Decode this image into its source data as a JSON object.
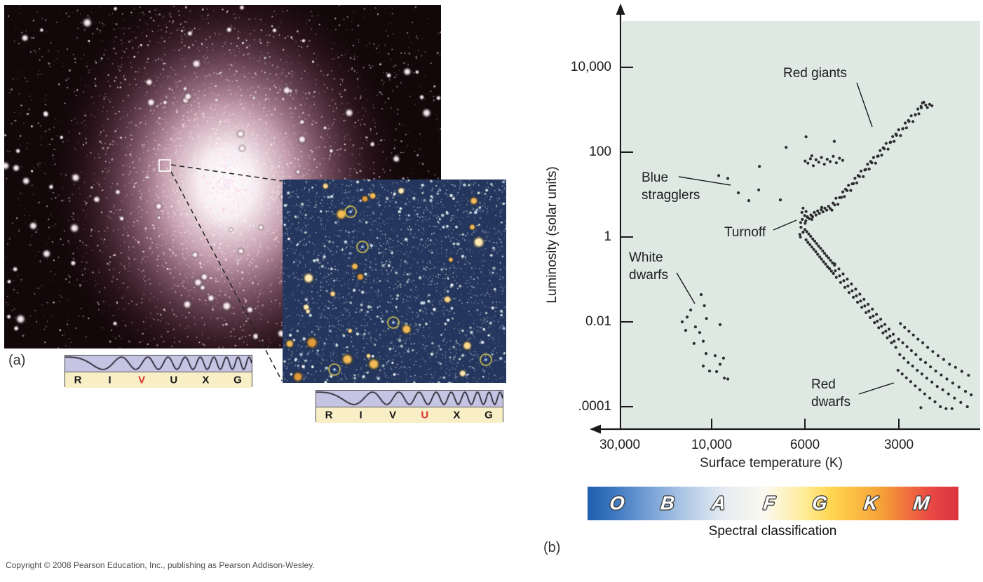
{
  "panels": {
    "a": "(a)",
    "b": "(b)"
  },
  "copyright": "Copyright © 2008 Pearson Education, Inc., publishing as Pearson Addison-Wesley.",
  "rivuxg": {
    "letters": [
      "R",
      "I",
      "V",
      "U",
      "X",
      "G"
    ],
    "bar1_highlight": "V",
    "bar2_highlight": "U",
    "highlight_color": "#d9342b",
    "letter_color": "#1a1a1a"
  },
  "spectral_bar": {
    "classes": [
      "O",
      "B",
      "A",
      "F",
      "G",
      "K",
      "M"
    ],
    "caption": "Spectral classification"
  },
  "chart_data": {
    "type": "scatter",
    "title": "",
    "xlabel": "Surface temperature (K)",
    "ylabel": "Luminosity (solar units)",
    "x_axis": {
      "direction": "decreasing to the right",
      "scale": "nonlinear (log-like)",
      "range": [
        30000,
        1700
      ]
    },
    "y_axis": {
      "scale": "log",
      "range": [
        0.0001,
        10000
      ]
    },
    "grid": false,
    "legend": false,
    "plot_bg": "#dee9e4",
    "dot_color": "#2d2d2d",
    "x_ticks": [
      {
        "label": "30,000",
        "value": 30000
      },
      {
        "label": "10,000",
        "value": 10000
      },
      {
        "label": "6000",
        "value": 6000
      },
      {
        "label": "3000",
        "value": 3000
      }
    ],
    "y_ticks": [
      {
        "label": "10,000",
        "value": 10000
      },
      {
        "label": "100",
        "value": 100
      },
      {
        "label": "1",
        "value": 1
      },
      {
        "label": "0.01",
        "value": 0.01
      },
      {
        "label": ".0001",
        "value": 0.0001
      }
    ],
    "annotations": {
      "red_giants": "Red giants",
      "blue_stragglers": "Blue stragglers",
      "turnoff": "Turnoff",
      "white_dwarfs": "White dwarfs",
      "red_dwarfs": "Red dwarfs"
    },
    "series": [
      {
        "name": "blue_stragglers",
        "points": [
          [
            9620,
            28
          ],
          [
            9155,
            24
          ],
          [
            8640,
            11
          ],
          [
            8160,
            7.2
          ],
          [
            7730,
            12.9
          ],
          [
            7700,
            46
          ],
          [
            6865,
            7.5
          ]
        ]
      },
      {
        "name": "turnoff_region",
        "points": [
          [
            6150,
            1.0
          ],
          [
            6060,
            1.3
          ],
          [
            6130,
            1.7
          ],
          [
            5990,
            2.1
          ],
          [
            6090,
            2.6
          ],
          [
            6010,
            3.2
          ],
          [
            6140,
            2.2
          ],
          [
            5950,
            4.0
          ],
          [
            6060,
            4.8
          ],
          [
            5900,
            3.0
          ],
          [
            6000,
            1.5
          ],
          [
            6100,
            3.8
          ],
          [
            5960,
            2.4
          ],
          [
            6170,
            1.15
          ]
        ]
      },
      {
        "name": "subgiant_branch",
        "points": [
          [
            5880,
            2.9
          ],
          [
            5810,
            2.7
          ],
          [
            5740,
            3.3
          ],
          [
            5670,
            3.0
          ],
          [
            5600,
            3.8
          ],
          [
            5530,
            3.3
          ],
          [
            5460,
            4.1
          ],
          [
            5390,
            3.6
          ],
          [
            5320,
            4.4
          ],
          [
            5250,
            3.9
          ],
          [
            5180,
            4.8
          ],
          [
            5110,
            4.3
          ],
          [
            5040,
            5.3
          ],
          [
            4980,
            4.7
          ],
          [
            5700,
            2.6
          ],
          [
            5300,
            5.0
          ]
        ]
      },
      {
        "name": "red_giant_branch",
        "points": [
          [
            4916,
            4.3
          ],
          [
            4876,
            6.3
          ],
          [
            4816,
            5.7
          ],
          [
            4771,
            8.2
          ],
          [
            4702,
            5.9
          ],
          [
            4649,
            8.5
          ],
          [
            4583,
            8.6
          ],
          [
            4536,
            11.6
          ],
          [
            4485,
            9.0
          ],
          [
            4445,
            13.4
          ],
          [
            4395,
            12.4
          ],
          [
            4350,
            16.6
          ],
          [
            4278,
            12.5
          ],
          [
            4231,
            17.9
          ],
          [
            4194,
            18.1
          ],
          [
            4147,
            24.3
          ],
          [
            4092,
            18.9
          ],
          [
            4052,
            28.1
          ],
          [
            4011,
            26.6
          ],
          [
            3966,
            35.8
          ],
          [
            3902,
            26.5
          ],
          [
            3855,
            38.1
          ],
          [
            3827,
            39
          ],
          [
            3780,
            52
          ],
          [
            3733,
            40
          ],
          [
            3693,
            60
          ],
          [
            3661,
            56
          ],
          [
            3616,
            75
          ],
          [
            3560,
            55
          ],
          [
            3513,
            80
          ],
          [
            3492,
            81
          ],
          [
            3445,
            109
          ],
          [
            3406,
            85
          ],
          [
            3366,
            127
          ],
          [
            3341,
            120
          ],
          [
            3296,
            161
          ],
          [
            3248,
            118
          ],
          [
            3201,
            169
          ],
          [
            3187,
            173
          ],
          [
            3140,
            233
          ],
          [
            3108,
            180
          ],
          [
            3068,
            267
          ],
          [
            3050,
            250
          ],
          [
            3005,
            337
          ],
          [
            2963,
            246
          ],
          [
            2916,
            354
          ],
          [
            2909,
            361
          ],
          [
            2862,
            486
          ],
          [
            2836,
            375
          ],
          [
            2796,
            558
          ],
          [
            2784,
            534
          ],
          [
            2739,
            719
          ],
          [
            2704,
            527
          ],
          [
            2657,
            757
          ],
          [
            2655,
            772
          ],
          [
            2608,
            1040
          ],
          [
            2588,
            801
          ],
          [
            2548,
            1192
          ],
          [
            2542,
            1116
          ],
          [
            2495,
            1504
          ]
        ]
      },
      {
        "name": "giant_branch_tip",
        "points": [
          [
            2460,
            1290
          ],
          [
            2430,
            1130
          ],
          [
            2390,
            1340
          ],
          [
            2520,
            1440
          ],
          [
            2350,
            1240
          ]
        ]
      },
      {
        "name": "horizontal_branch",
        "points": [
          [
            5990,
            62
          ],
          [
            5870,
            55
          ],
          [
            5760,
            70
          ],
          [
            5640,
            48
          ],
          [
            5530,
            66
          ],
          [
            5420,
            58
          ],
          [
            5310,
            75
          ],
          [
            5200,
            52
          ],
          [
            5090,
            68
          ],
          [
            4980,
            60
          ],
          [
            4870,
            80
          ],
          [
            4760,
            56
          ],
          [
            4650,
            72
          ],
          [
            4540,
            64
          ],
          [
            5700,
            82
          ]
        ]
      },
      {
        "name": "bright_giants_scatter",
        "points": [
          [
            6650,
            130
          ],
          [
            5950,
            230
          ],
          [
            4830,
            180
          ]
        ]
      },
      {
        "name": "main_sequence_upper",
        "points": [
          [
            5952,
            0.86
          ],
          [
            5918,
            1.34
          ],
          [
            5872,
            0.75
          ],
          [
            5833,
            1.18
          ],
          [
            5783,
            0.66
          ],
          [
            5748,
            1.04
          ],
          [
            5700,
            0.58
          ],
          [
            5662,
            0.9
          ],
          [
            5622,
            0.51
          ],
          [
            5581,
            0.8
          ],
          [
            5538,
            0.45
          ],
          [
            5500,
            0.7
          ],
          [
            5461,
            0.39
          ],
          [
            5421,
            0.61
          ],
          [
            5380,
            0.34
          ],
          [
            5341,
            0.54
          ],
          [
            5305,
            0.3
          ],
          [
            5262,
            0.47
          ],
          [
            5228,
            0.26
          ],
          [
            5188,
            0.41
          ],
          [
            5150,
            0.23
          ],
          [
            5111,
            0.36
          ],
          [
            5080,
            0.2
          ],
          [
            5039,
            0.32
          ],
          [
            5003,
            0.18
          ],
          [
            4965,
            0.28
          ],
          [
            4934,
            0.157
          ],
          [
            4893,
            0.245
          ],
          [
            4861,
            0.138
          ],
          [
            4820,
            0.216
          ]
        ]
      },
      {
        "name": "main_sequence_lower",
        "points": [
          [
            4758,
            0.112
          ],
          [
            4794,
            0.16
          ],
          [
            4816,
            0.232
          ],
          [
            4612,
            0.085
          ],
          [
            4648,
            0.122
          ],
          [
            4670,
            0.177
          ],
          [
            4469,
            0.065
          ],
          [
            4505,
            0.093
          ],
          [
            4527,
            0.135
          ],
          [
            4332,
            0.049
          ],
          [
            4368,
            0.07
          ],
          [
            4390,
            0.102
          ],
          [
            4198,
            0.038
          ],
          [
            4234,
            0.054
          ],
          [
            4256,
            0.078
          ],
          [
            4068,
            0.029
          ],
          [
            4104,
            0.041
          ],
          [
            4126,
            0.059
          ],
          [
            3944,
            0.022
          ],
          [
            3980,
            0.031
          ],
          [
            4002,
            0.045
          ],
          [
            3822,
            0.0165
          ],
          [
            3858,
            0.0236
          ],
          [
            3880,
            0.034
          ],
          [
            3705,
            0.0126
          ],
          [
            3741,
            0.018
          ],
          [
            3763,
            0.026
          ],
          [
            3590,
            0.0096
          ],
          [
            3626,
            0.0137
          ],
          [
            3648,
            0.02
          ],
          [
            3480,
            0.0073
          ],
          [
            3516,
            0.0104
          ],
          [
            3538,
            0.0151
          ],
          [
            3372,
            0.0055
          ],
          [
            3408,
            0.0079
          ],
          [
            3430,
            0.0115
          ],
          [
            3268,
            0.0042
          ],
          [
            3304,
            0.006
          ],
          [
            3326,
            0.0087
          ],
          [
            3167,
            0.0032
          ],
          [
            3203,
            0.0046
          ],
          [
            3225,
            0.0067
          ],
          [
            3069,
            0.0025
          ],
          [
            3105,
            0.0035
          ],
          [
            3127,
            0.0051
          ]
        ]
      },
      {
        "name": "red_dwarf_fan",
        "points": [
          [
            2965,
            0.0091
          ],
          [
            3005,
            0.0039
          ],
          [
            2980,
            0.0017
          ],
          [
            3018,
            0.00072
          ],
          [
            2875,
            0.0074
          ],
          [
            2915,
            0.0032
          ],
          [
            2890,
            0.0014
          ],
          [
            2928,
            0.00059
          ],
          [
            2785,
            0.006
          ],
          [
            2825,
            0.0026
          ],
          [
            2800,
            0.0011
          ],
          [
            2838,
            0.00048
          ],
          [
            2695,
            0.0049
          ],
          [
            2735,
            0.0021
          ],
          [
            2710,
            0.00091
          ],
          [
            2748,
            0.00039
          ],
          [
            2605,
            0.0039
          ],
          [
            2645,
            0.0017
          ],
          [
            2620,
            0.00072
          ],
          [
            2658,
            0.00031
          ],
          [
            2515,
            0.0032
          ],
          [
            2555,
            0.0013
          ],
          [
            2530,
            0.00059
          ],
          [
            2568,
            0.00025
          ],
          [
            2425,
            0.0025
          ],
          [
            2465,
            0.0011
          ],
          [
            2440,
            0.00047
          ],
          [
            2478,
            0.0002
          ],
          [
            2335,
            0.002
          ],
          [
            2375,
            0.00087
          ],
          [
            2350,
            0.00038
          ],
          [
            2388,
            0.00016
          ],
          [
            2245,
            0.0016
          ],
          [
            2285,
            0.00069
          ],
          [
            2260,
            0.0003
          ],
          [
            2298,
            0.00013
          ],
          [
            2155,
            0.0013
          ],
          [
            2195,
            0.00056
          ],
          [
            2170,
            0.00025
          ],
          [
            2208,
            0.0001
          ],
          [
            2065,
            0.001
          ],
          [
            2105,
            0.00045
          ],
          [
            2080,
            0.0002
          ],
          [
            2118,
            9e-05
          ],
          [
            1975,
            0.00085
          ],
          [
            2015,
            0.00036
          ],
          [
            1990,
            0.00016
          ],
          [
            2028,
            9e-05
          ],
          [
            1885,
            0.00068
          ],
          [
            1925,
            0.00029
          ],
          [
            1900,
            0.000126
          ],
          [
            1795,
            0.00055
          ],
          [
            1835,
            0.00023
          ],
          [
            1810,
            0.0001
          ],
          [
            1760,
            0.00019
          ],
          [
            2550,
            9.5e-05
          ]
        ]
      },
      {
        "name": "white_dwarfs",
        "points": [
          [
            11320,
            0.044
          ],
          [
            14150,
            0.01
          ],
          [
            13350,
            0.013
          ],
          [
            12100,
            0.0076
          ],
          [
            13570,
            0.0063
          ],
          [
            11510,
            0.0056
          ],
          [
            12300,
            0.0031
          ],
          [
            11040,
            0.0035
          ],
          [
            10680,
            0.0018
          ],
          [
            9810,
            0.0016
          ],
          [
            9370,
            0.0014
          ],
          [
            11040,
            0.00091
          ],
          [
            10250,
            0.00069
          ],
          [
            9730,
            0.00067
          ],
          [
            9330,
            0.00047
          ],
          [
            9150,
            0.00045
          ],
          [
            9550,
            0.001
          ],
          [
            10630,
            0.012
          ],
          [
            9550,
            0.0086
          ],
          [
            10900,
            0.024
          ],
          [
            12800,
            0.019
          ]
        ]
      }
    ]
  }
}
